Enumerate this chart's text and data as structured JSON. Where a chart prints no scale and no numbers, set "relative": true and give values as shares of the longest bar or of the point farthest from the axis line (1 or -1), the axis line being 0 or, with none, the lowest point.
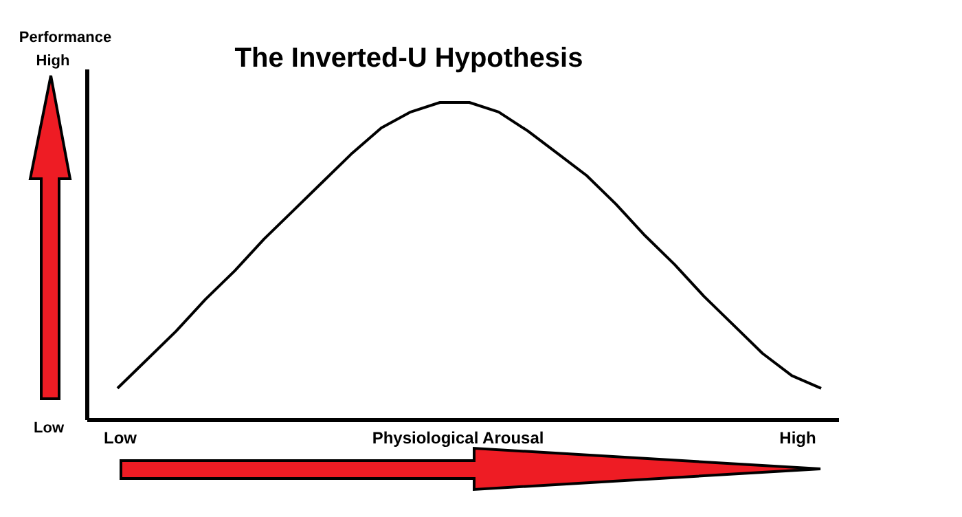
{
  "chart_data": {
    "type": "line",
    "title": "The Inverted-U Hypothesis",
    "ylabel": "Performance",
    "xlabel": "Physiological Arousal",
    "annotations": [
      "High",
      "Low",
      "Low",
      "High"
    ],
    "relative": true,
    "color": "#000000",
    "categories": [
      null,
      null,
      null,
      null,
      null,
      null,
      null,
      null,
      null,
      null,
      null,
      null,
      null,
      null,
      null,
      null,
      null,
      null,
      null,
      null,
      null,
      null,
      null,
      null,
      null
    ],
    "values": [
      0.1,
      0.19,
      0.28,
      0.38,
      0.47,
      0.57,
      0.66,
      0.75,
      0.84,
      0.92,
      0.97,
      1.0,
      1.0,
      0.97,
      0.91,
      0.84,
      0.77,
      0.68,
      0.58,
      0.49,
      0.39,
      0.3,
      0.21,
      0.14,
      0.1
    ]
  }
}
